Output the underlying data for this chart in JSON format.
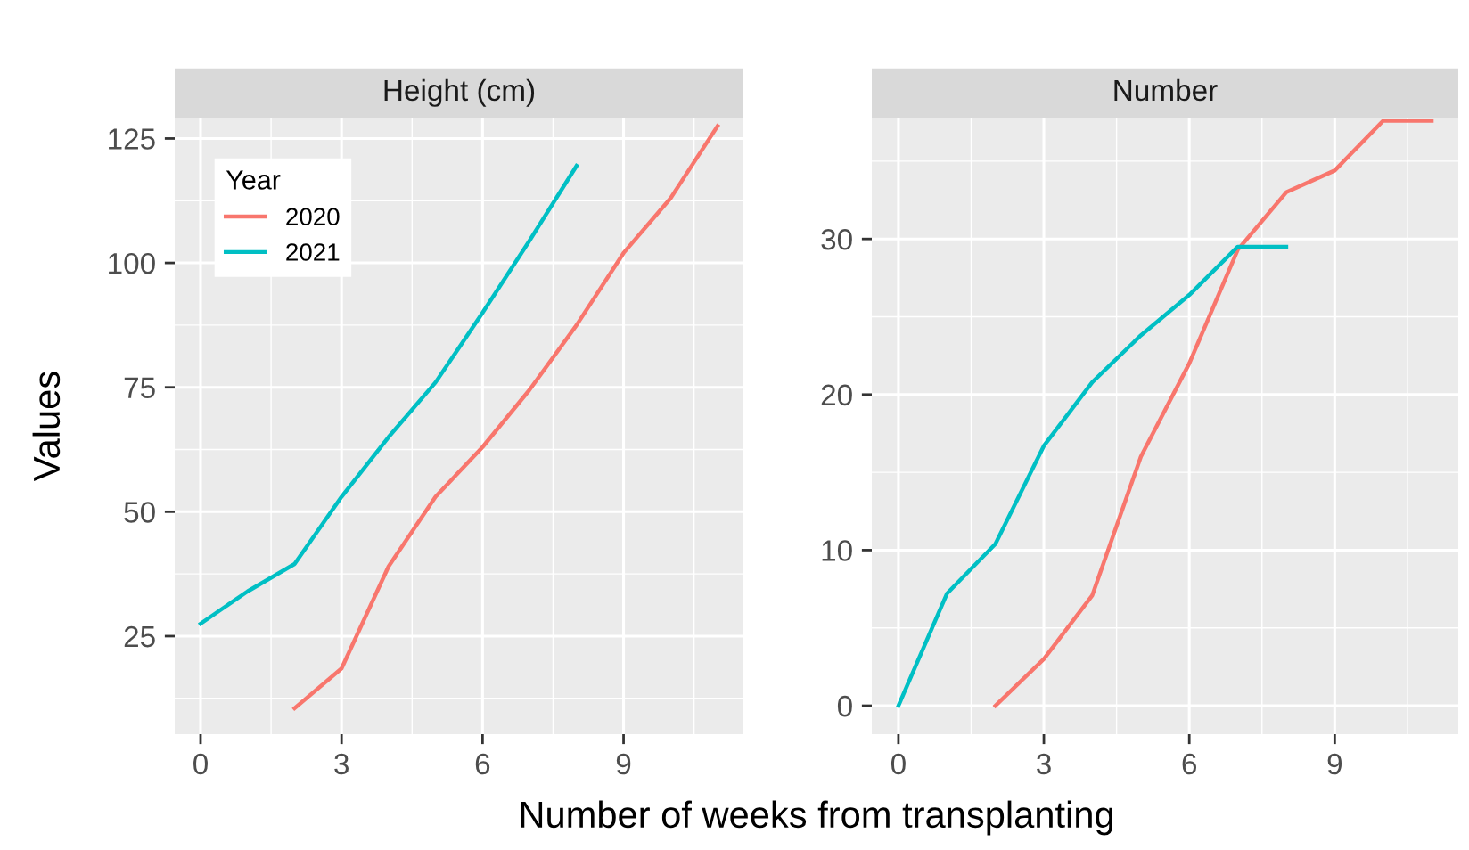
{
  "chart_data": [
    {
      "type": "line",
      "title": "Height (cm)",
      "xlabel": "Number of weeks from transplanting",
      "ylabel": "Values",
      "legend_title": "Year",
      "legend": "top left",
      "grid": true,
      "series": [
        {
          "name": "2020",
          "color": "#f8766d",
          "x": [
            2,
            3,
            4,
            5,
            6,
            7,
            8,
            9,
            10,
            11
          ],
          "values": [
            10.5,
            18.5,
            39,
            53,
            63,
            74.5,
            87.5,
            102,
            113,
            127.5
          ]
        },
        {
          "name": "2021",
          "color": "#00bfc4",
          "x": [
            0,
            1,
            2,
            3,
            4,
            5,
            6,
            7,
            8
          ],
          "values": [
            27.5,
            34,
            39.5,
            53,
            65,
            76,
            90,
            104.5,
            119.5
          ]
        }
      ],
      "xlim": [
        -0.55,
        11.55
      ],
      "xticks": [
        0,
        3,
        6,
        9
      ],
      "ylim": [
        5.3,
        129.2
      ],
      "yticks": [
        25,
        50,
        75,
        100,
        125
      ]
    },
    {
      "type": "line",
      "title": "Number",
      "grid": true,
      "series": [
        {
          "color": "#f8766d",
          "x": [
            2,
            3,
            4,
            5,
            6,
            7,
            8,
            9,
            10,
            11
          ],
          "values": [
            0,
            3,
            7.1,
            16,
            22,
            29.3,
            33,
            34.4,
            37.6,
            37.6
          ]
        },
        {
          "color": "#00bfc4",
          "x": [
            0,
            1,
            2,
            3,
            4,
            5,
            6,
            7,
            8
          ],
          "values": [
            0,
            7.2,
            10.4,
            16.7,
            20.8,
            23.8,
            26.4,
            29.5,
            29.5
          ]
        }
      ],
      "xlim": [
        -0.55,
        11.55
      ],
      "xticks": [
        0,
        3,
        6,
        9
      ],
      "ylim": [
        -1.83,
        37.8
      ],
      "yticks": [
        0,
        10,
        20,
        30
      ]
    }
  ]
}
